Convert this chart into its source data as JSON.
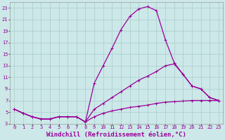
{
  "xlabel": "Windchill (Refroidissement éolien,°C)",
  "bg_color": "#cce8e8",
  "grid_color": "#aacccc",
  "line_color": "#990099",
  "xlim": [
    -0.5,
    23.5
  ],
  "ylim": [
    3,
    24
  ],
  "xticks": [
    0,
    1,
    2,
    3,
    4,
    5,
    6,
    7,
    8,
    9,
    10,
    11,
    12,
    13,
    14,
    15,
    16,
    17,
    18,
    19,
    20,
    21,
    22,
    23
  ],
  "yticks": [
    3,
    5,
    7,
    9,
    11,
    13,
    15,
    17,
    19,
    21,
    23
  ],
  "line1_x": [
    0,
    1,
    2,
    3,
    4,
    5,
    6,
    7,
    8,
    9,
    10,
    11,
    12,
    13,
    14,
    15,
    16,
    17,
    18,
    19,
    20,
    21,
    22,
    23
  ],
  "line1_y": [
    5.5,
    4.8,
    4.2,
    3.8,
    3.8,
    4.2,
    4.2,
    4.2,
    3.3,
    10.0,
    13.0,
    16.0,
    19.2,
    21.5,
    22.8,
    23.2,
    22.5,
    17.5,
    13.5,
    11.5,
    9.5,
    9.0,
    7.5,
    7.0
  ],
  "line2_x": [
    0,
    1,
    2,
    3,
    4,
    5,
    6,
    7,
    8,
    9,
    10,
    11,
    12,
    13,
    14,
    15,
    16,
    17,
    18,
    19,
    20,
    21,
    22,
    23
  ],
  "line2_y": [
    5.5,
    4.8,
    4.2,
    3.8,
    3.8,
    4.2,
    4.2,
    4.2,
    3.3,
    5.5,
    6.5,
    7.5,
    8.5,
    9.5,
    10.5,
    11.2,
    12.0,
    13.0,
    13.3,
    11.5,
    9.5,
    9.0,
    7.5,
    7.0
  ],
  "line3_x": [
    0,
    1,
    2,
    3,
    4,
    5,
    6,
    7,
    8,
    9,
    10,
    11,
    12,
    13,
    14,
    15,
    16,
    17,
    18,
    19,
    20,
    21,
    22,
    23
  ],
  "line3_y": [
    5.5,
    4.8,
    4.2,
    3.8,
    3.8,
    4.2,
    4.2,
    4.2,
    3.3,
    4.2,
    4.8,
    5.2,
    5.5,
    5.8,
    6.0,
    6.2,
    6.5,
    6.7,
    6.8,
    6.9,
    7.0,
    7.0,
    7.0,
    7.0
  ],
  "marker": "+",
  "markersize": 3,
  "linewidth": 0.9,
  "tick_fontsize": 5,
  "xlabel_fontsize": 6.5
}
